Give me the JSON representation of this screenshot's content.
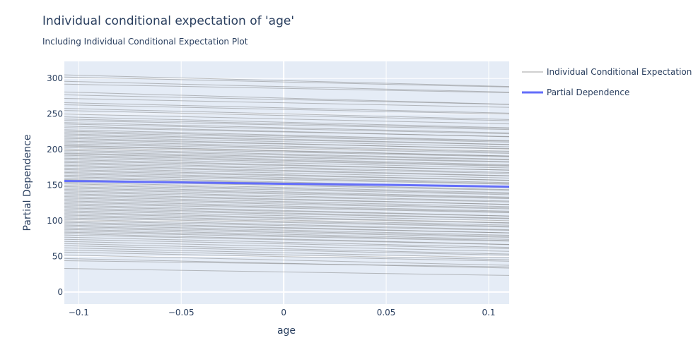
{
  "chart_data": {
    "type": "line",
    "title": "Individual conditional expectation of 'age'",
    "subtitle": "Including Individual Conditional Expectation Plot",
    "xlabel": "age",
    "ylabel": "Partial Dependence",
    "xlim": [
      -0.107,
      0.11
    ],
    "ylim": [
      -17,
      324
    ],
    "x_ticks": [
      -0.1,
      -0.05,
      0,
      0.05,
      0.1
    ],
    "x_tick_labels": [
      "−0.1",
      "−0.05",
      "0",
      "0.05",
      "0.1"
    ],
    "y_ticks": [
      0,
      50,
      100,
      150,
      200,
      250,
      300
    ],
    "y_tick_labels": [
      "0",
      "50",
      "100",
      "150",
      "200",
      "250",
      "300"
    ],
    "grid": true,
    "legend_position": "top-right, outside plot",
    "x": [
      -0.107,
      0.11
    ],
    "ice_series": {
      "name": "Individual Conditional Expectation",
      "color": "#808080",
      "start_values": [
        305,
        302,
        296,
        292,
        281,
        277,
        272,
        266,
        263,
        258,
        255,
        250,
        246,
        243,
        241,
        238,
        236,
        233,
        231,
        228,
        226,
        224,
        222,
        220,
        218,
        216,
        214,
        212,
        210,
        208,
        206,
        205,
        203,
        201,
        199,
        197,
        195,
        194,
        192,
        190,
        188,
        186,
        184,
        182,
        180,
        178,
        176,
        174,
        172,
        170,
        168,
        166,
        164,
        162,
        160,
        158,
        156,
        154,
        152,
        150,
        148,
        146,
        144,
        142,
        140,
        138,
        136,
        134,
        132,
        130,
        128,
        126,
        124,
        122,
        120,
        118,
        116,
        114,
        112,
        110,
        108,
        106,
        104,
        102,
        100,
        98,
        96,
        94,
        92,
        90,
        88,
        86,
        84,
        82,
        80,
        77,
        74,
        71,
        68,
        65,
        62,
        59,
        56,
        52,
        47,
        44,
        33
      ],
      "slopes": [
        -75,
        -65,
        -70,
        -55,
        -80,
        -62,
        -58,
        -68,
        -60,
        -72,
        -66,
        -64,
        -70,
        -61,
        -59,
        -67,
        -63,
        -69,
        -58,
        -71,
        -65,
        -62,
        -68,
        -60,
        -64,
        -70,
        -57,
        -66,
        -63,
        -61,
        -69,
        -65,
        -60,
        -67,
        -62,
        -64,
        -58,
        -70,
        -66,
        -61,
        -63,
        -68,
        -59,
        -65,
        -62,
        -67,
        -60,
        -64,
        -69,
        -61,
        -66,
        -63,
        -58,
        -70,
        -62,
        -65,
        -60,
        -67,
        -64,
        -61,
        -68,
        -63,
        -59,
        -66,
        -62,
        -69,
        -60,
        -65,
        -64,
        -61,
        -67,
        -63,
        -58,
        -70,
        -62,
        -66,
        -60,
        -64,
        -68,
        -61,
        -65,
        -63,
        -59,
        -67,
        -62,
        -69,
        -60,
        -66,
        -64,
        -61,
        -65,
        -63,
        -58,
        -70,
        -62,
        -66,
        -60,
        -64,
        -68,
        -61,
        -65,
        -63,
        -59,
        -67,
        -62,
        -40,
        -45
      ]
    },
    "series": [
      {
        "name": "Partial Dependence",
        "color": "#636efa",
        "x": [
          -0.107,
          -0.05,
          0,
          0.05,
          0.11
        ],
        "y": [
          156,
          154,
          152,
          150.5,
          148
        ]
      }
    ],
    "legend": [
      {
        "label": "Individual Conditional Expectation",
        "color": "#808080"
      },
      {
        "label": "Partial Dependence",
        "color": "#636efa"
      }
    ],
    "colors": {
      "plot_bg": "#e5ecf6",
      "grid": "#ffffff",
      "text": "#2a3f5f"
    }
  }
}
